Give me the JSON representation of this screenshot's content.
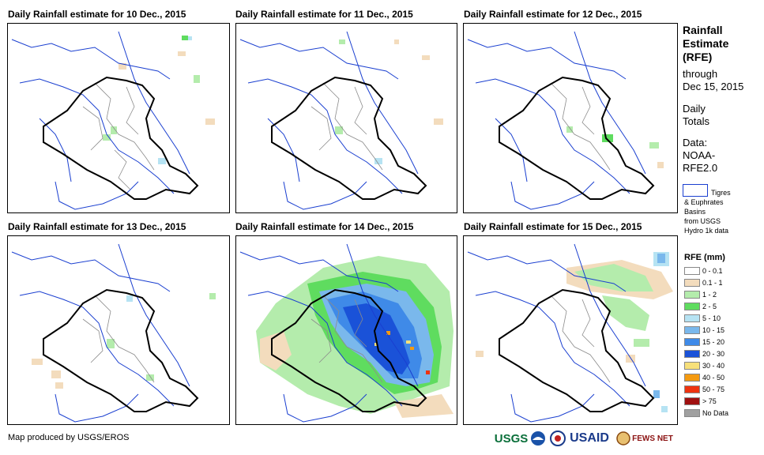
{
  "panels": [
    {
      "title": "Daily Rainfall estimate for 10 Dec., 2015"
    },
    {
      "title": "Daily Rainfall estimate for 11 Dec., 2015"
    },
    {
      "title": "Daily Rainfall estimate for 12 Dec., 2015"
    },
    {
      "title": "Daily Rainfall estimate for 13 Dec., 2015"
    },
    {
      "title": "Daily Rainfall estimate for 14 Dec., 2015"
    },
    {
      "title": "Daily Rainfall estimate for 15 Dec., 2015"
    }
  ],
  "sidebar": {
    "title_lines": [
      "Rainfall",
      "Estimate",
      "(RFE)"
    ],
    "through_lines": [
      "through",
      "Dec 15, 2015"
    ],
    "daily_lines": [
      "Daily",
      "Totals"
    ],
    "data_lines": [
      "Data:",
      "NOAA-",
      "RFE2.0"
    ],
    "basin_label_lines": [
      "Tigres",
      "& Euphrates",
      "Basins",
      "from USGS",
      "Hydro 1k data"
    ]
  },
  "legend": {
    "title": "RFE (mm)",
    "items": [
      {
        "label": "0 - 0.1",
        "color": "#ffffff"
      },
      {
        "label": "0.1 - 1",
        "color": "#f3dcbd"
      },
      {
        "label": "1 - 2",
        "color": "#b4ecac"
      },
      {
        "label": "2 - 5",
        "color": "#5fdc5f"
      },
      {
        "label": "5 - 10",
        "color": "#b6e3f3"
      },
      {
        "label": "10 - 15",
        "color": "#7ab8ec"
      },
      {
        "label": "15 - 20",
        "color": "#3f8ae8"
      },
      {
        "label": "20 - 30",
        "color": "#1a52d8"
      },
      {
        "label": "30 - 40",
        "color": "#f7e07a"
      },
      {
        "label": "40 - 50",
        "color": "#f49a10"
      },
      {
        "label": "50 - 75",
        "color": "#ee3310"
      },
      {
        "label": "> 75",
        "color": "#a01010"
      },
      {
        "label": "No Data",
        "color": "#a0a0a0"
      }
    ]
  },
  "credit": "Map produced by USGS/EROS",
  "logos": [
    "USGS",
    "NOAA",
    "USAID",
    "FEWS NET"
  ],
  "colors": {
    "basin_outline": "#1a3fd0",
    "admin_lines": "#8c8c8c",
    "border": "#000000"
  }
}
